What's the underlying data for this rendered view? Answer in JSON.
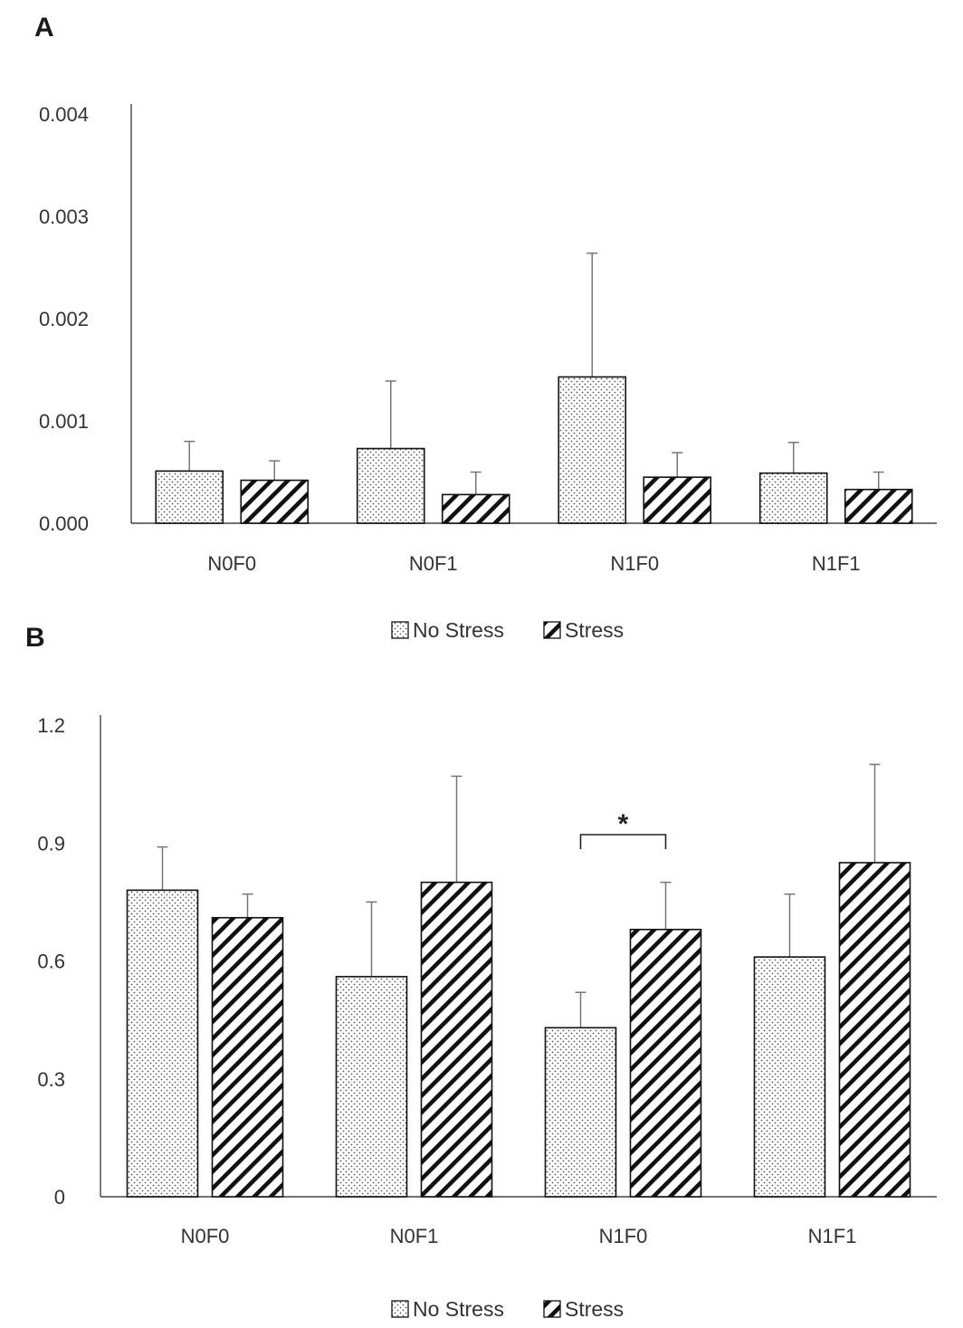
{
  "chart_data": [
    {
      "panel": "A",
      "type": "bar",
      "categories": [
        "N0F0",
        "N0F1",
        "N1F0",
        "N1F1"
      ],
      "series": [
        {
          "name": "No Stress",
          "pattern": "dots",
          "values": [
            0.00051,
            0.00073,
            0.00143,
            0.00049
          ],
          "errors": [
            0.00029,
            0.00066,
            0.00121,
            0.0003
          ]
        },
        {
          "name": "Stress",
          "pattern": "hatch",
          "values": [
            0.00042,
            0.00028,
            0.00045,
            0.00033
          ],
          "errors": [
            0.00019,
            0.00022,
            0.00024,
            0.00017
          ]
        }
      ],
      "yticks": [
        "0.000",
        "0.001",
        "0.002",
        "0.003",
        "0.004"
      ],
      "ylim": [
        0,
        0.004
      ],
      "legend": [
        "No Stress",
        "Stress"
      ],
      "legend_position": "bottom"
    },
    {
      "panel": "B",
      "type": "bar",
      "categories": [
        "N0F0",
        "N0F1",
        "N1F0",
        "N1F1"
      ],
      "series": [
        {
          "name": "No Stress",
          "pattern": "dots",
          "values": [
            0.78,
            0.56,
            0.43,
            0.61
          ],
          "errors": [
            0.11,
            0.19,
            0.09,
            0.16
          ]
        },
        {
          "name": "Stress",
          "pattern": "hatch",
          "values": [
            0.71,
            0.8,
            0.68,
            0.85
          ],
          "errors": [
            0.06,
            0.27,
            0.12,
            0.25
          ]
        }
      ],
      "yticks": [
        "0",
        "0.3",
        "0.6",
        "0.9",
        "1.2"
      ],
      "ylim": [
        0,
        1.2
      ],
      "legend": [
        "No Stress",
        "Stress"
      ],
      "legend_position": "bottom",
      "annotations": [
        {
          "text": "*",
          "category": "N1F0",
          "type": "bracket"
        }
      ]
    }
  ]
}
